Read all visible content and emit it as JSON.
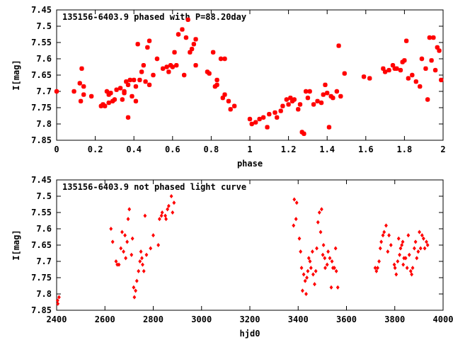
{
  "colors": {
    "points": "#ff0000",
    "axes": "#000000",
    "background": "#ffffff"
  },
  "chart_data": [
    {
      "type": "scatter",
      "title": "135156-6403.9 phased with P=88.20day",
      "xlabel": "phase",
      "ylabel": "I[mag]",
      "xlim": [
        0,
        2
      ],
      "ylim": [
        7.45,
        7.85
      ],
      "y_inverted": true,
      "x_ticks": [
        0,
        0.2,
        0.4,
        0.6,
        0.8,
        1,
        1.2,
        1.4,
        1.6,
        1.8,
        2
      ],
      "x_tick_labels": [
        "0",
        "0.2",
        "0.4",
        "0.6",
        "0.8",
        "1",
        "1.2",
        "1.4",
        "1.6",
        "1.8",
        "2"
      ],
      "y_ticks": [
        7.45,
        7.5,
        7.55,
        7.6,
        7.65,
        7.7,
        7.75,
        7.8,
        7.85
      ],
      "y_tick_labels": [
        "7.45",
        "7.5",
        "7.55",
        "7.6",
        "7.65",
        "7.7",
        "7.75",
        "7.8",
        "7.85"
      ],
      "marker": "star",
      "grid": false,
      "x": [
        0.0,
        0.09,
        0.12,
        0.125,
        0.13,
        0.14,
        0.14,
        0.18,
        0.23,
        0.24,
        0.25,
        0.26,
        0.27,
        0.27,
        0.28,
        0.29,
        0.3,
        0.31,
        0.33,
        0.34,
        0.35,
        0.35,
        0.36,
        0.37,
        0.37,
        0.38,
        0.39,
        0.4,
        0.41,
        0.41,
        0.42,
        0.43,
        0.44,
        0.45,
        0.46,
        0.47,
        0.48,
        0.48,
        0.5,
        0.52,
        0.55,
        0.57,
        0.58,
        0.59,
        0.6,
        0.61,
        0.62,
        0.63,
        0.65,
        0.66,
        0.67,
        0.68,
        0.69,
        0.7,
        0.71,
        0.72,
        0.72,
        0.78,
        0.79,
        0.81,
        0.82,
        0.83,
        0.83,
        0.85,
        0.86,
        0.87,
        0.87,
        0.89,
        0.9,
        0.92,
        1.0,
        1.01,
        1.03,
        1.05,
        1.07,
        1.09,
        1.1,
        1.13,
        1.14,
        1.16,
        1.17,
        1.19,
        1.2,
        1.21,
        1.22,
        1.23,
        1.25,
        1.26,
        1.27,
        1.28,
        1.29,
        1.3,
        1.31,
        1.33,
        1.35,
        1.37,
        1.38,
        1.39,
        1.4,
        1.41,
        1.42,
        1.43,
        1.45,
        1.46,
        1.47,
        1.49,
        1.59,
        1.62,
        1.69,
        1.7,
        1.72,
        1.74,
        1.75,
        1.76,
        1.78,
        1.79,
        1.8,
        1.81,
        1.82,
        1.84,
        1.86,
        1.88,
        1.89,
        1.91,
        1.92,
        1.93,
        1.94,
        1.95,
        1.96,
        1.97,
        1.98,
        1.99
      ],
      "y": [
        7.7,
        7.7,
        7.675,
        7.73,
        7.63,
        7.685,
        7.71,
        7.715,
        7.745,
        7.74,
        7.745,
        7.7,
        7.735,
        7.71,
        7.705,
        7.73,
        7.725,
        7.695,
        7.69,
        7.725,
        7.705,
        7.7,
        7.67,
        7.78,
        7.68,
        7.665,
        7.715,
        7.665,
        7.73,
        7.685,
        7.555,
        7.665,
        7.64,
        7.62,
        7.67,
        7.565,
        7.545,
        7.68,
        7.65,
        7.6,
        7.63,
        7.625,
        7.64,
        7.62,
        7.625,
        7.58,
        7.62,
        7.525,
        7.51,
        7.65,
        7.535,
        7.48,
        7.58,
        7.57,
        7.555,
        7.54,
        7.62,
        7.64,
        7.645,
        7.58,
        7.685,
        7.665,
        7.68,
        7.6,
        7.72,
        7.71,
        7.6,
        7.73,
        7.755,
        7.745,
        7.785,
        7.8,
        7.795,
        7.785,
        7.78,
        7.81,
        7.77,
        7.765,
        7.78,
        7.76,
        7.745,
        7.725,
        7.74,
        7.72,
        7.73,
        7.725,
        7.755,
        7.74,
        7.825,
        7.83,
        7.7,
        7.72,
        7.7,
        7.74,
        7.73,
        7.735,
        7.71,
        7.68,
        7.705,
        7.81,
        7.715,
        7.72,
        7.7,
        7.56,
        7.715,
        7.645,
        7.655,
        7.66,
        7.63,
        7.64,
        7.635,
        7.62,
        7.63,
        7.63,
        7.635,
        7.61,
        7.605,
        7.545,
        7.66,
        7.65,
        7.67,
        7.685,
        7.6,
        7.63,
        7.725,
        7.535,
        7.605,
        7.535,
        7.635,
        7.565,
        7.575,
        7.665
      ],
      "series": [
        {
          "color": "#ff0000"
        }
      ]
    },
    {
      "type": "scatter",
      "title": "135156-6403.9 not phased light curve",
      "xlabel": "hjd0",
      "ylabel": "I[mag]",
      "xlim": [
        2400,
        4000
      ],
      "ylim": [
        7.45,
        7.85
      ],
      "y_inverted": true,
      "x_ticks": [
        2400,
        2600,
        2800,
        3000,
        3200,
        3400,
        3600,
        3800,
        4000
      ],
      "x_tick_labels": [
        "2400",
        "2600",
        "2800",
        "3000",
        "3200",
        "3400",
        "3600",
        "3800",
        "4000"
      ],
      "y_ticks": [
        7.45,
        7.5,
        7.55,
        7.6,
        7.65,
        7.7,
        7.75,
        7.8,
        7.85
      ],
      "y_tick_labels": [
        "7.45",
        "7.5",
        "7.55",
        "7.6",
        "7.65",
        "7.7",
        "7.75",
        "7.8",
        "7.85"
      ],
      "marker": "diamond",
      "grid": false,
      "x": [
        2404,
        2405,
        2410,
        2625,
        2632,
        2646,
        2651,
        2658,
        2666,
        2671,
        2677,
        2683,
        2686,
        2692,
        2696,
        2701,
        2710,
        2714,
        2719,
        2722,
        2727,
        2732,
        2739,
        2745,
        2749,
        2753,
        2756,
        2761,
        2766,
        2772,
        2789,
        2800,
        2821,
        2826,
        2834,
        2837,
        2850,
        2853,
        2859,
        2864,
        2875,
        2880,
        2886,
        3381,
        3384,
        3391,
        3394,
        3405,
        3410,
        3414,
        3418,
        3423,
        3429,
        3433,
        3436,
        3440,
        3444,
        3449,
        3453,
        3459,
        3462,
        3468,
        3473,
        3477,
        3482,
        3488,
        3493,
        3497,
        3502,
        3505,
        3510,
        3512,
        3520,
        3524,
        3531,
        3537,
        3540,
        3544,
        3550,
        3555,
        3558,
        3564,
        3719,
        3724,
        3729,
        3735,
        3740,
        3744,
        3751,
        3756,
        3764,
        3771,
        3776,
        3784,
        3798,
        3801,
        3806,
        3812,
        3816,
        3820,
        3824,
        3829,
        3833,
        3835,
        3838,
        3845,
        3851,
        3856,
        3860,
        3866,
        3870,
        3874,
        3881,
        3886,
        3891,
        3897,
        3902,
        3907,
        3913,
        3919,
        3924,
        3931,
        3936
      ],
      "y": [
        7.82,
        7.83,
        7.81,
        7.6,
        7.64,
        7.7,
        7.71,
        7.71,
        7.66,
        7.61,
        7.67,
        7.62,
        7.69,
        7.64,
        7.57,
        7.54,
        7.68,
        7.63,
        7.78,
        7.81,
        7.79,
        7.76,
        7.73,
        7.7,
        7.67,
        7.69,
        7.71,
        7.73,
        7.56,
        7.68,
        7.66,
        7.62,
        7.65,
        7.57,
        7.56,
        7.55,
        7.56,
        7.57,
        7.54,
        7.53,
        7.5,
        7.55,
        7.52,
        7.59,
        7.51,
        7.57,
        7.52,
        7.63,
        7.67,
        7.72,
        7.79,
        7.74,
        7.76,
        7.8,
        7.75,
        7.73,
        7.69,
        7.7,
        7.72,
        7.67,
        7.74,
        7.77,
        7.73,
        7.66,
        7.58,
        7.55,
        7.61,
        7.54,
        7.68,
        7.65,
        7.69,
        7.72,
        7.71,
        7.67,
        7.69,
        7.78,
        7.7,
        7.72,
        7.72,
        7.66,
        7.73,
        7.78,
        7.72,
        7.73,
        7.72,
        7.7,
        7.66,
        7.64,
        7.62,
        7.61,
        7.59,
        7.67,
        7.62,
        7.65,
        7.71,
        7.72,
        7.74,
        7.7,
        7.63,
        7.68,
        7.66,
        7.65,
        7.64,
        7.71,
        7.69,
        7.69,
        7.72,
        7.62,
        7.68,
        7.73,
        7.74,
        7.72,
        7.66,
        7.64,
        7.69,
        7.67,
        7.61,
        7.66,
        7.62,
        7.63,
        7.66,
        7.64,
        7.65
      ],
      "series": [
        {
          "color": "#ff0000"
        }
      ]
    }
  ]
}
